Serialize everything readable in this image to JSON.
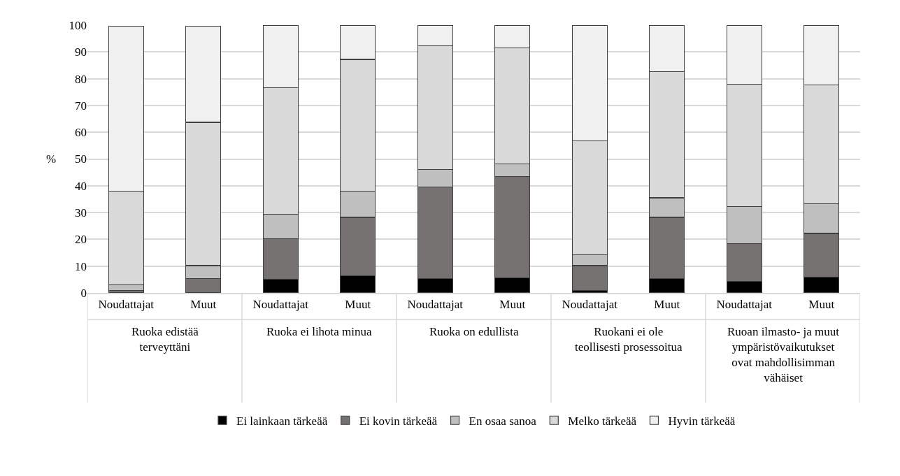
{
  "chart_data": {
    "type": "bar",
    "stacked": true,
    "ylabel": "%",
    "categories": [
      "Noudattajat",
      "Muut",
      "Noudattajat",
      "Muut",
      "Noudattajat",
      "Muut",
      "Noudattajat",
      "Muut",
      "Noudattajat",
      "Muut"
    ],
    "annotations": [
      "Ruoka edistää terveyttäni",
      "Ruoka ei lihota minua",
      "Ruoka on edullista",
      "Ruokani ei ole teollisesti prosessoitua",
      "Ruoan ilmasto- ja muut ympäristövaikutukset ovat mahdollisimman vähäiset"
    ],
    "series": [
      {
        "name": "Ei lainkaan tärkeää",
        "color": "#000000",
        "values": [
          null,
          null,
          5.0,
          6.3,
          5.3,
          5.6,
          1.0,
          5.3,
          4.3,
          5.8
        ]
      },
      {
        "name": "Ei kovin tärkeää",
        "color": "#767171",
        "values": [
          0.9,
          5.4,
          15.2,
          21.9,
          34.3,
          37.9,
          9.2,
          22.9,
          14.2,
          16.4
        ]
      },
      {
        "name": "En osaa sanoa",
        "color": "#bfbfbf",
        "values": [
          2.0,
          4.8,
          9.1,
          9.7,
          6.4,
          4.7,
          4.0,
          7.3,
          13.7,
          11.0
        ]
      },
      {
        "name": "Melko tärkeää",
        "color": "#d9d9d9",
        "values": [
          35.1,
          53.5,
          47.4,
          49.3,
          46.2,
          43.4,
          42.6,
          47.2,
          45.8,
          44.4
        ]
      },
      {
        "name": "Hyvin tärkeää",
        "color": "#f0f0f0",
        "values": [
          61.7,
          36.0,
          23.3,
          12.8,
          7.8,
          8.4,
          43.2,
          17.3,
          22.0,
          22.4
        ]
      }
    ],
    "ylim": [
      0,
      100
    ],
    "yticks": [
      0,
      10,
      20,
      30,
      40,
      50,
      60,
      70,
      80,
      90,
      100
    ],
    "grid": "y",
    "legend": "bottom"
  }
}
